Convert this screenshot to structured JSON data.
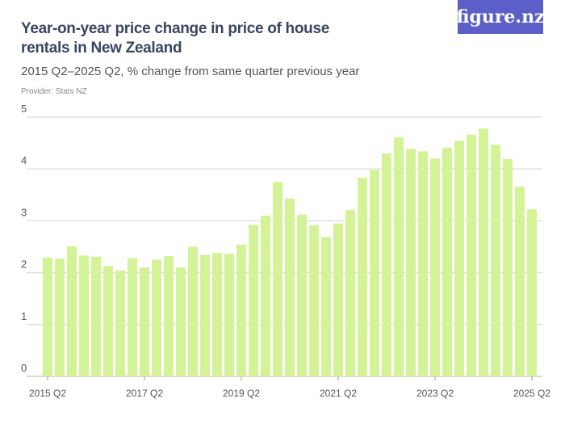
{
  "header": {
    "title": "Year-on-year price change in price of house rentals in New Zealand",
    "subtitle": "2015 Q2–2025 Q2, % change from same quarter previous year",
    "provider": "Provider: Stats NZ",
    "logo": "figure.nz"
  },
  "colors": {
    "bar": "#d4f396",
    "logo_bg": "#5b5fc7",
    "grid": "#e0e0e0"
  },
  "chart_data": {
    "type": "bar",
    "title": "Year-on-year price change in price of house rentals in New Zealand",
    "subtitle": "2015 Q2–2025 Q2, % change from same quarter previous year",
    "ylim": [
      0,
      5
    ],
    "grid": true,
    "yticks": [
      "0",
      "1",
      "2",
      "3",
      "4",
      "5"
    ],
    "xtick_labels": [
      "2015 Q2",
      "2017 Q2",
      "2019 Q2",
      "2021 Q2",
      "2023 Q2",
      "2025 Q2"
    ],
    "categories": [
      "2015 Q2",
      "2015 Q3",
      "2015 Q4",
      "2016 Q1",
      "2016 Q2",
      "2016 Q3",
      "2016 Q4",
      "2017 Q1",
      "2017 Q2",
      "2017 Q3",
      "2017 Q4",
      "2018 Q1",
      "2018 Q2",
      "2018 Q3",
      "2018 Q4",
      "2019 Q1",
      "2019 Q2",
      "2019 Q3",
      "2019 Q4",
      "2020 Q1",
      "2020 Q2",
      "2020 Q3",
      "2020 Q4",
      "2021 Q1",
      "2021 Q2",
      "2021 Q3",
      "2021 Q4",
      "2022 Q1",
      "2022 Q2",
      "2022 Q3",
      "2022 Q4",
      "2023 Q1",
      "2023 Q2",
      "2023 Q3",
      "2023 Q4",
      "2024 Q1",
      "2024 Q2",
      "2024 Q3",
      "2024 Q4",
      "2025 Q1",
      "2025 Q2"
    ],
    "values": [
      2.29,
      2.27,
      2.51,
      2.33,
      2.31,
      2.13,
      2.04,
      2.28,
      2.1,
      2.25,
      2.32,
      2.1,
      2.5,
      2.34,
      2.38,
      2.36,
      2.54,
      2.92,
      3.1,
      3.75,
      3.43,
      3.12,
      2.91,
      2.69,
      2.95,
      3.21,
      3.83,
      3.98,
      4.3,
      4.61,
      4.39,
      4.34,
      4.2,
      4.41,
      4.54,
      4.66,
      4.78,
      4.47,
      4.19,
      3.66,
      3.22
    ]
  }
}
